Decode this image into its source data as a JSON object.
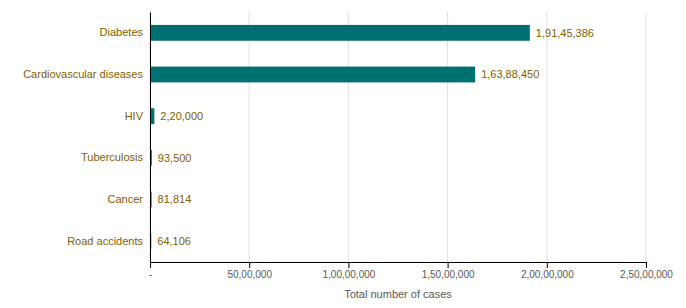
{
  "chart_data": {
    "type": "bar",
    "orientation": "horizontal",
    "xlabel": "Total number of cases",
    "categories": [
      "Road accidents",
      "Cancer",
      "Tuberculosis",
      "HIV",
      "Cardiovascular diseases",
      "Diabetes"
    ],
    "values": [
      64106,
      81814,
      93500,
      220000,
      16388450,
      19145386
    ],
    "value_labels": [
      "64,106",
      "81,814",
      "93,500",
      "2,20,000",
      "1,63,88,450",
      "1,91,45,386"
    ],
    "data_labels": true,
    "color": "#007070",
    "xlim": [
      0,
      25000000
    ],
    "xticks": [
      {
        "value": 0,
        "label": "-"
      },
      {
        "value": 5000000,
        "label": "50,00,000"
      },
      {
        "value": 10000000,
        "label": "1,00,00,000"
      },
      {
        "value": 15000000,
        "label": "1,50,00,000"
      },
      {
        "value": 20000000,
        "label": "2,00,00,000"
      },
      {
        "value": 25000000,
        "label": "2,50,00,000"
      }
    ],
    "grid": true
  }
}
